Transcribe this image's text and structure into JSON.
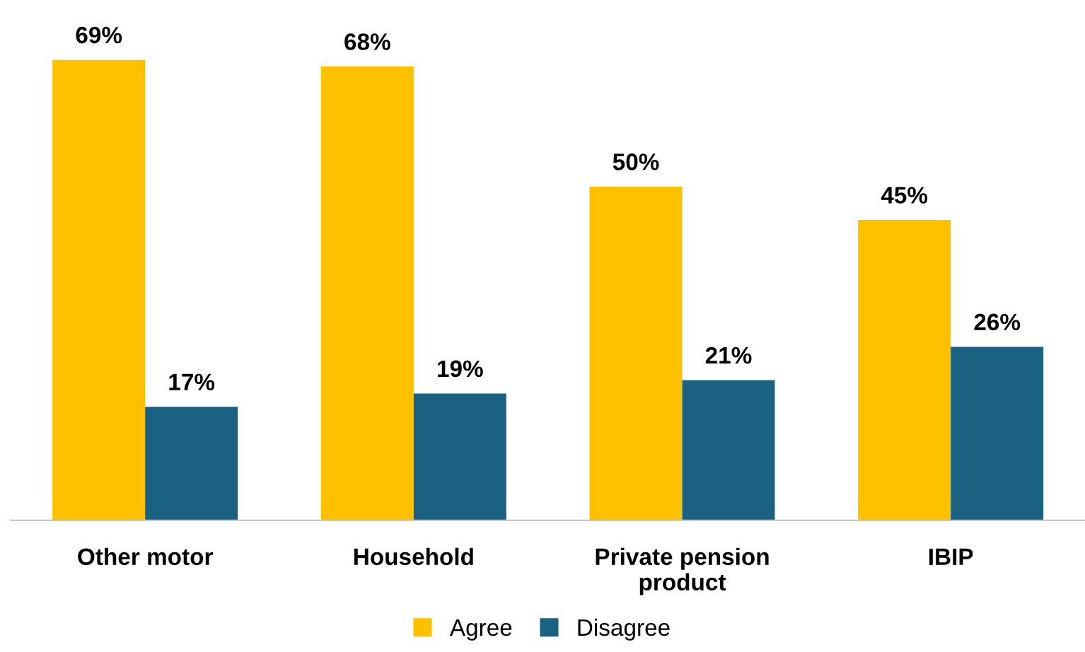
{
  "chart_data": {
    "type": "bar",
    "categories": [
      "Other motor",
      "Household",
      "Private pension\nproduct",
      "IBIP"
    ],
    "series": [
      {
        "name": "Agree",
        "color": "#ffc000",
        "values": [
          69,
          68,
          50,
          45
        ],
        "value_labels": [
          "69%",
          "68%",
          "50%",
          "45%"
        ]
      },
      {
        "name": "Disagree",
        "color": "#1a6182",
        "values": [
          17,
          19,
          21,
          26
        ],
        "value_labels": [
          "17%",
          "19%",
          "21%",
          "26%"
        ]
      }
    ],
    "tick_labels": "x",
    "grid": false,
    "legend": "bottom"
  }
}
